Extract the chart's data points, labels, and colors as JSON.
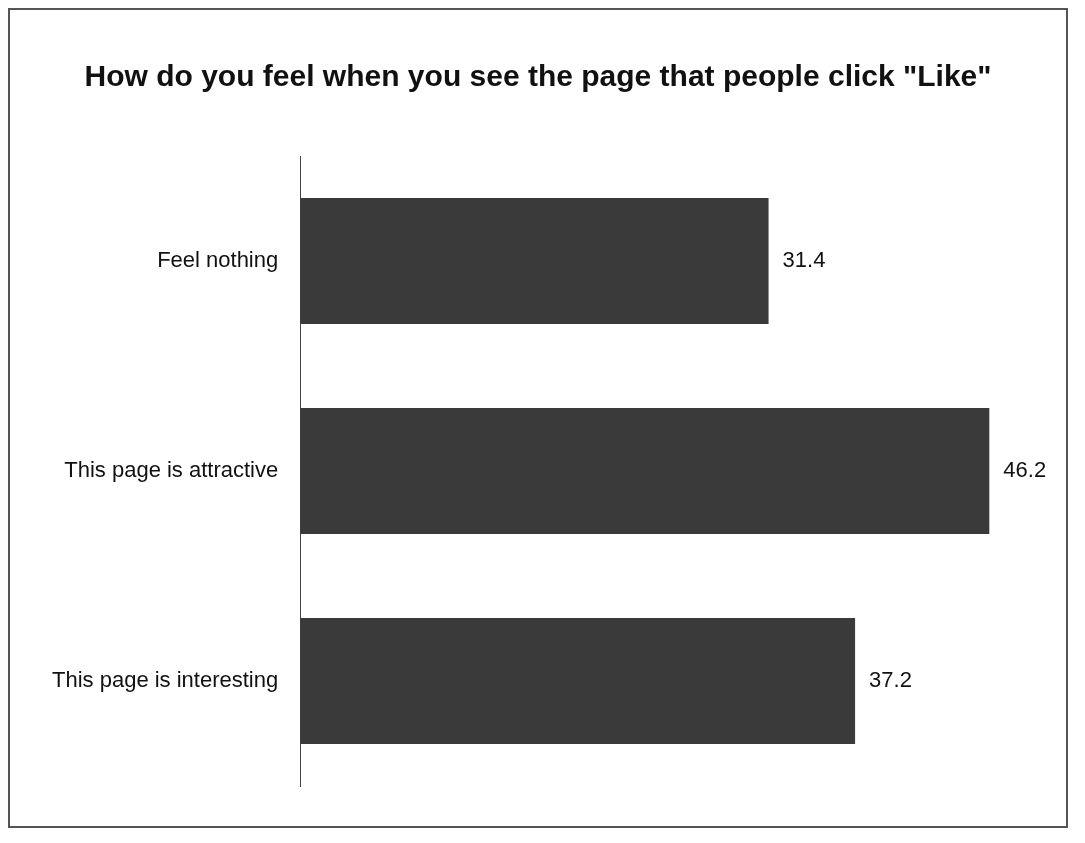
{
  "chart_data": {
    "type": "bar",
    "orientation": "horizontal",
    "title": "How do you feel when you see the page that people click \"Like\"",
    "categories": [
      "Feel nothing",
      "This page is attractive",
      "This page is interesting"
    ],
    "values": [
      31.4,
      46.2,
      37.2
    ],
    "color": "#3a3a3a",
    "data_labels": true,
    "legend": false
  }
}
